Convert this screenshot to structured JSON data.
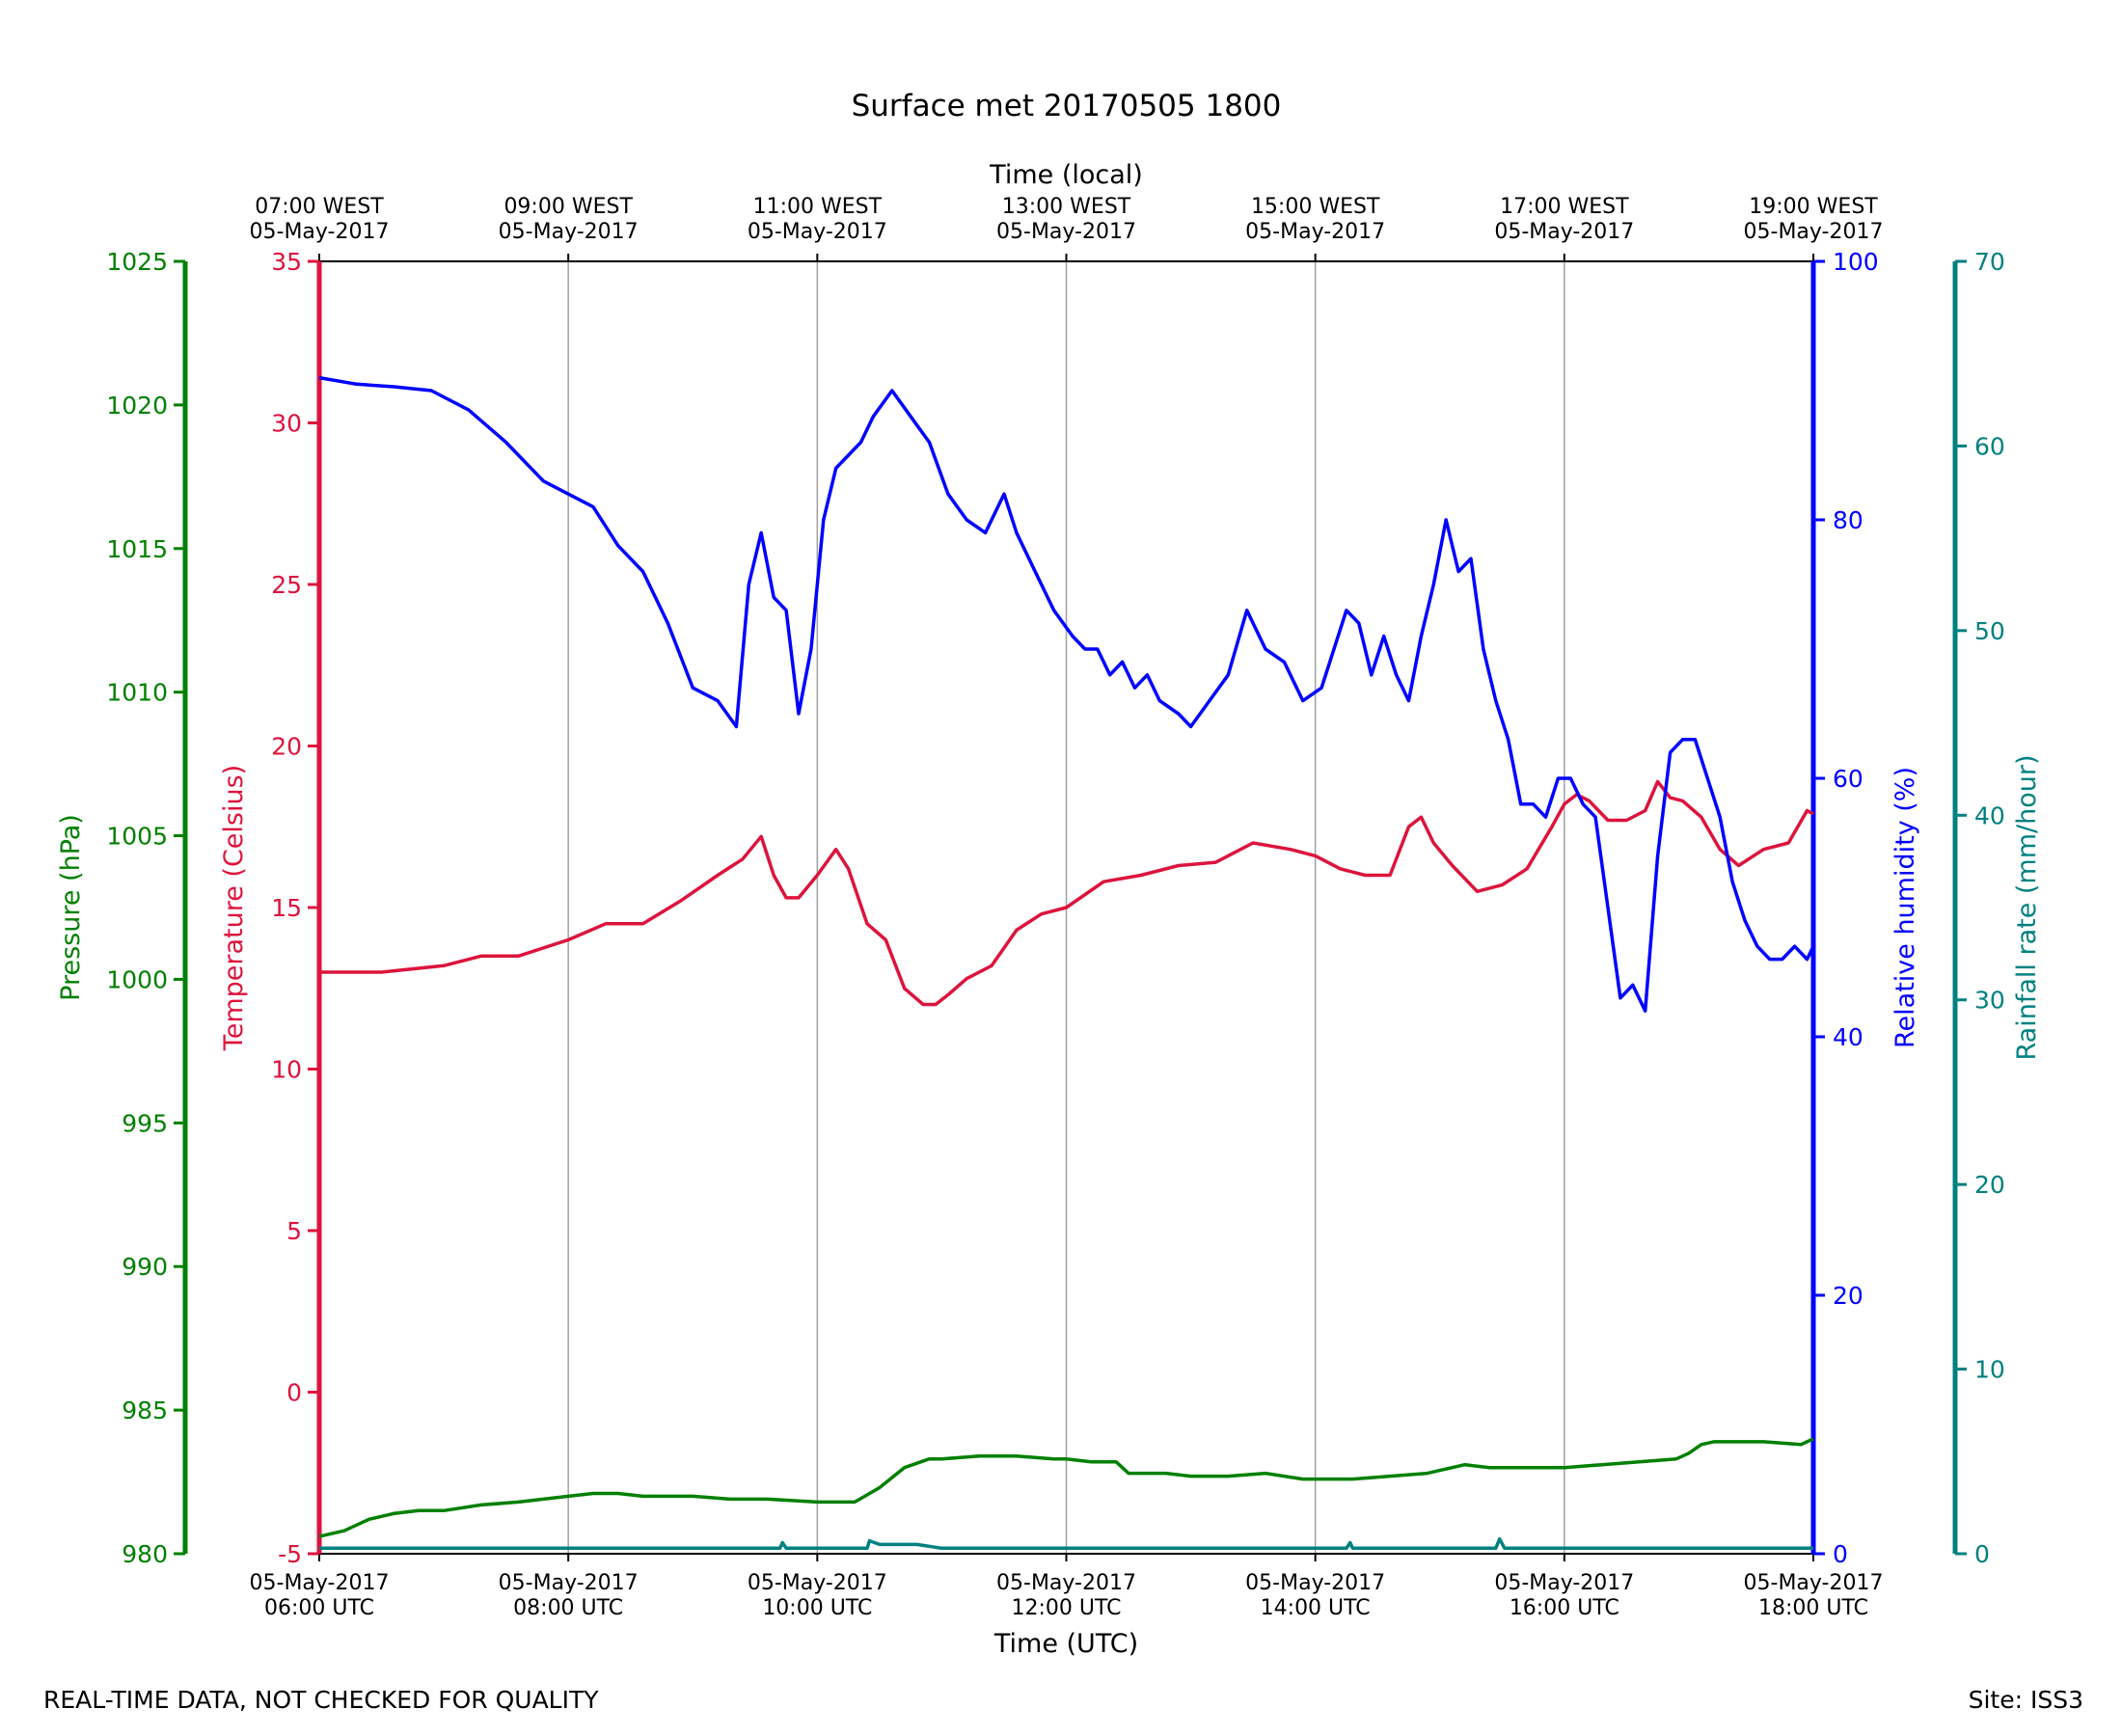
{
  "chart_data": {
    "type": "line",
    "title": "Surface met 20170505 1800",
    "top_axis_label": "Time (local)",
    "bottom_axis_label": "Time (UTC)",
    "top_ticks": [
      {
        "hour": 6,
        "line1": "07:00 WEST",
        "line2": "05-May-2017"
      },
      {
        "hour": 8,
        "line1": "09:00 WEST",
        "line2": "05-May-2017"
      },
      {
        "hour": 10,
        "line1": "11:00 WEST",
        "line2": "05-May-2017"
      },
      {
        "hour": 12,
        "line1": "13:00 WEST",
        "line2": "05-May-2017"
      },
      {
        "hour": 14,
        "line1": "15:00 WEST",
        "line2": "05-May-2017"
      },
      {
        "hour": 16,
        "line1": "17:00 WEST",
        "line2": "05-May-2017"
      },
      {
        "hour": 18,
        "line1": "19:00 WEST",
        "line2": "05-May-2017"
      }
    ],
    "bottom_ticks": [
      {
        "hour": 6,
        "line1": "05-May-2017",
        "line2": "06:00 UTC"
      },
      {
        "hour": 8,
        "line1": "05-May-2017",
        "line2": "08:00 UTC"
      },
      {
        "hour": 10,
        "line1": "05-May-2017",
        "line2": "10:00 UTC"
      },
      {
        "hour": 12,
        "line1": "05-May-2017",
        "line2": "12:00 UTC"
      },
      {
        "hour": 14,
        "line1": "05-May-2017",
        "line2": "14:00 UTC"
      },
      {
        "hour": 16,
        "line1": "05-May-2017",
        "line2": "16:00 UTC"
      },
      {
        "hour": 18,
        "line1": "05-May-2017",
        "line2": "18:00 UTC"
      }
    ],
    "xlim_hours_utc": [
      6,
      18
    ],
    "vertical_grid": true,
    "axes": {
      "pressure": {
        "label": "Pressure (hPa)",
        "color": "#008000",
        "ylim": [
          980,
          1025
        ],
        "ticks": [
          980,
          985,
          990,
          995,
          1000,
          1005,
          1010,
          1015,
          1020,
          1025
        ]
      },
      "temperature": {
        "label": "Temperature (Celsius)",
        "color": "#dc143c",
        "ylim": [
          -5,
          35
        ],
        "ticks": [
          -5,
          0,
          5,
          10,
          15,
          20,
          25,
          30,
          35
        ]
      },
      "humidity": {
        "label": "Relative humidity (%)",
        "color": "#0000ff",
        "ylim": [
          0,
          100
        ],
        "ticks": [
          0,
          20,
          40,
          60,
          80,
          100
        ]
      },
      "rainfall": {
        "label": "Rainfall rate (mm/hour)",
        "color": "#008080",
        "ylim": [
          0,
          70
        ],
        "ticks": [
          0,
          10,
          20,
          30,
          40,
          50,
          60,
          70
        ]
      }
    },
    "series": [
      {
        "name": "Relative humidity",
        "axis": "humidity",
        "color": "#0000ff",
        "x": [
          6.0,
          6.3,
          6.6,
          6.9,
          7.2,
          7.5,
          7.8,
          8.0,
          8.2,
          8.4,
          8.6,
          8.8,
          9.0,
          9.2,
          9.35,
          9.45,
          9.55,
          9.65,
          9.75,
          9.85,
          9.95,
          10.05,
          10.15,
          10.25,
          10.35,
          10.45,
          10.6,
          10.75,
          10.9,
          11.05,
          11.2,
          11.35,
          11.5,
          11.6,
          11.75,
          11.9,
          12.05,
          12.15,
          12.25,
          12.35,
          12.45,
          12.55,
          12.65,
          12.75,
          12.9,
          13.0,
          13.15,
          13.3,
          13.45,
          13.6,
          13.75,
          13.9,
          14.05,
          14.15,
          14.25,
          14.35,
          14.45,
          14.55,
          14.65,
          14.75,
          14.85,
          14.95,
          15.05,
          15.15,
          15.25,
          15.35,
          15.45,
          15.55,
          15.65,
          15.75,
          15.85,
          15.95,
          16.05,
          16.15,
          16.25,
          16.35,
          16.45,
          16.55,
          16.65,
          16.75,
          16.85,
          16.95,
          17.05,
          17.15,
          17.25,
          17.35,
          17.45,
          17.55,
          17.65,
          17.75,
          17.85,
          17.95,
          18.0
        ],
        "y": [
          91,
          90.5,
          90.3,
          90,
          88.5,
          86,
          83,
          82,
          81,
          78,
          76,
          72,
          67,
          66,
          64,
          75,
          79,
          74,
          73,
          65,
          70,
          80,
          84,
          85,
          86,
          88,
          90,
          88,
          86,
          82,
          80,
          79,
          82,
          79,
          76,
          73,
          71,
          70,
          70,
          68,
          69,
          67,
          68,
          66,
          65,
          64,
          66,
          68,
          73,
          70,
          69,
          66,
          67,
          70,
          73,
          72,
          68,
          71,
          68,
          66,
          71,
          75,
          80,
          76,
          77,
          70,
          66,
          63,
          58,
          58,
          57,
          60,
          60,
          58,
          57,
          50,
          43,
          44,
          42,
          54,
          62,
          63,
          63,
          60,
          57,
          52,
          49,
          47,
          46,
          46,
          47,
          46,
          47
        ]
      },
      {
        "name": "Temperature",
        "axis": "temperature",
        "color": "#dc143c",
        "x": [
          6.0,
          6.5,
          7.0,
          7.3,
          7.6,
          8.0,
          8.3,
          8.6,
          8.9,
          9.2,
          9.4,
          9.55,
          9.65,
          9.75,
          9.85,
          10.0,
          10.15,
          10.25,
          10.4,
          10.55,
          10.7,
          10.85,
          10.95,
          11.05,
          11.2,
          11.4,
          11.6,
          11.8,
          12.0,
          12.3,
          12.6,
          12.9,
          13.2,
          13.5,
          13.8,
          14.0,
          14.2,
          14.4,
          14.6,
          14.75,
          14.85,
          14.95,
          15.1,
          15.3,
          15.5,
          15.7,
          15.9,
          16.0,
          16.1,
          16.2,
          16.35,
          16.5,
          16.65,
          16.75,
          16.85,
          16.95,
          17.1,
          17.25,
          17.4,
          17.6,
          17.8,
          17.95,
          18.0
        ],
        "y": [
          13,
          13,
          13.2,
          13.5,
          13.5,
          14,
          14.5,
          14.5,
          15.2,
          16,
          16.5,
          17.2,
          16,
          15.3,
          15.3,
          16,
          16.8,
          16.2,
          14.5,
          14,
          12.5,
          12,
          12,
          12.3,
          12.8,
          13.2,
          14.3,
          14.8,
          15,
          15.8,
          16,
          16.3,
          16.4,
          17,
          16.8,
          16.6,
          16.2,
          16,
          16,
          17.5,
          17.8,
          17,
          16.3,
          15.5,
          15.7,
          16.2,
          17.5,
          18.2,
          18.5,
          18.3,
          17.7,
          17.7,
          18,
          18.9,
          18.4,
          18.3,
          17.8,
          16.8,
          16.3,
          16.8,
          17,
          18,
          17.9
        ]
      },
      {
        "name": "Pressure",
        "axis": "pressure",
        "color": "#008000",
        "x": [
          6.0,
          6.2,
          6.4,
          6.6,
          6.8,
          7.0,
          7.3,
          7.6,
          8.0,
          8.2,
          8.4,
          8.6,
          9.0,
          9.3,
          9.6,
          10.0,
          10.3,
          10.5,
          10.7,
          10.9,
          11.0,
          11.3,
          11.6,
          11.9,
          12.0,
          12.2,
          12.4,
          12.5,
          12.8,
          13.0,
          13.3,
          13.6,
          13.9,
          14.0,
          14.3,
          14.6,
          14.9,
          15.0,
          15.2,
          15.4,
          15.6,
          15.8,
          16.0,
          16.3,
          16.6,
          16.9,
          17.0,
          17.1,
          17.2,
          17.3,
          17.6,
          17.9,
          18.0
        ],
        "y": [
          980.6,
          980.8,
          981.2,
          981.4,
          981.5,
          981.5,
          981.7,
          981.8,
          982.0,
          982.1,
          982.1,
          982.0,
          982.0,
          981.9,
          981.9,
          981.8,
          981.8,
          982.3,
          983.0,
          983.3,
          983.3,
          983.4,
          983.4,
          983.3,
          983.3,
          983.2,
          983.2,
          982.8,
          982.8,
          982.7,
          982.7,
          982.8,
          982.6,
          982.6,
          982.6,
          982.7,
          982.8,
          982.9,
          983.1,
          983.0,
          983.0,
          983.0,
          983.0,
          983.1,
          983.2,
          983.3,
          983.5,
          983.8,
          983.9,
          983.9,
          983.9,
          983.8,
          984.0
        ]
      },
      {
        "name": "Rainfall rate",
        "axis": "rainfall",
        "color": "#008080",
        "x": [
          6.0,
          7.0,
          8.0,
          9.0,
          9.7,
          9.72,
          9.75,
          10.0,
          10.4,
          10.42,
          10.5,
          10.8,
          11.0,
          12.0,
          13.0,
          14.0,
          14.25,
          14.28,
          14.3,
          15.0,
          15.45,
          15.48,
          15.52,
          16.0,
          17.0,
          18.0
        ],
        "y": [
          0.3,
          0.3,
          0.3,
          0.3,
          0.3,
          0.6,
          0.3,
          0.3,
          0.3,
          0.7,
          0.5,
          0.5,
          0.3,
          0.3,
          0.3,
          0.3,
          0.3,
          0.6,
          0.3,
          0.3,
          0.3,
          0.8,
          0.3,
          0.3,
          0.3,
          0.3
        ]
      }
    ]
  },
  "footer": {
    "left": "REAL-TIME DATA, NOT CHECKED FOR QUALITY",
    "right": "Site: ISS3"
  }
}
